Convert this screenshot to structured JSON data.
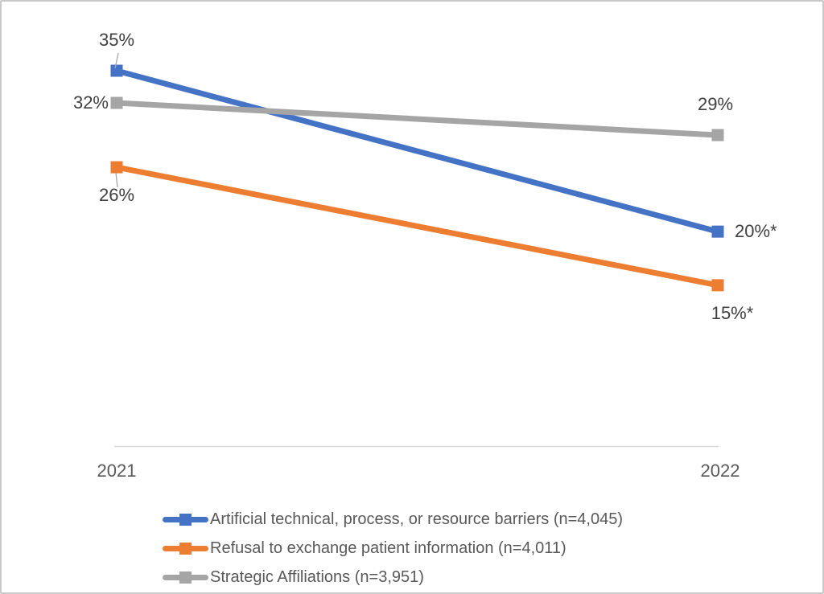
{
  "chart_data": {
    "type": "line",
    "title": "",
    "categories": [
      "2021",
      "2022"
    ],
    "xlabel": "",
    "ylabel": "",
    "ylim": [
      0,
      41
    ],
    "grid": false,
    "legend_position": "bottom",
    "marker": "square",
    "series": [
      {
        "name": "Artificial technical, process, or resource barriers (n=4,045)",
        "color": "#4472C4",
        "values": [
          35,
          20
        ],
        "labels": [
          {
            "text": "35%",
            "position": "above",
            "dx": 0
          },
          {
            "text": "20%*",
            "position": "right",
            "dx": 0
          }
        ]
      },
      {
        "name": "Refusal to exchange patient information (n=4,011)",
        "color": "#ED7D31",
        "values": [
          26,
          15
        ],
        "labels": [
          {
            "text": "26%",
            "position": "below",
            "dx": 0
          },
          {
            "text": "15%*",
            "position": "below",
            "dx": 18
          }
        ]
      },
      {
        "name": "Strategic Affiliations (n=3,951)",
        "color": "#A5A5A5",
        "values": [
          32,
          29
        ],
        "labels": [
          {
            "text": "32%",
            "position": "left",
            "dx": 0
          },
          {
            "text": "29%",
            "position": "above",
            "dx": -3
          }
        ]
      }
    ]
  },
  "colors": {
    "data_label_text": "#404040",
    "axis_text": "#595959",
    "legend_text": "#595959",
    "axis_line": "#D9D9D9",
    "leader_line": "#A6A6A6",
    "frame_border": "#C9C9C9",
    "background": "#FFFFFF"
  }
}
